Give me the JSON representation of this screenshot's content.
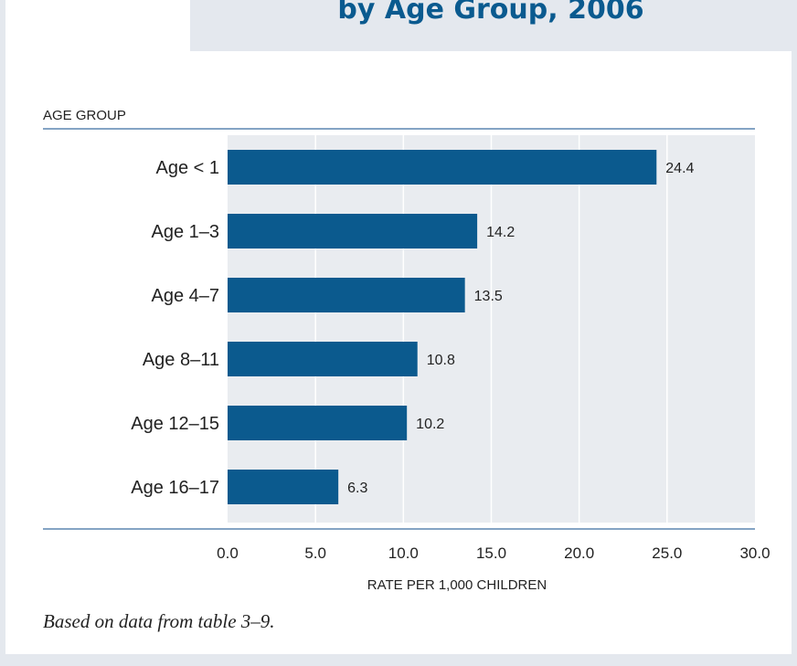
{
  "chart_data": {
    "type": "bar",
    "orientation": "horizontal",
    "title": "by Age Group, 2006",
    "ylabel": "AGE GROUP",
    "xlabel": "RATE PER 1,000 CHILDREN",
    "categories": [
      "Age < 1",
      "Age 1–3",
      "Age 4–7",
      "Age 8–11",
      "Age 12–15",
      "Age 16–17"
    ],
    "values": [
      24.4,
      14.2,
      13.5,
      10.8,
      10.2,
      6.3
    ],
    "value_labels": [
      "24.4",
      "14.2",
      "13.5",
      "10.8",
      "10.2",
      "6.3"
    ],
    "xlim": [
      0,
      30
    ],
    "xticks": [
      "0.0",
      "5.0",
      "10.0",
      "15.0",
      "20.0",
      "25.0",
      "30.0"
    ],
    "grid": "vertical",
    "colors": {
      "bar": "#0b5a8e",
      "plot_background": "#e9ecf0",
      "title": "#0a5a8f",
      "rule": "#5b86b0"
    }
  },
  "footnote": "Based on data from table 3–9."
}
